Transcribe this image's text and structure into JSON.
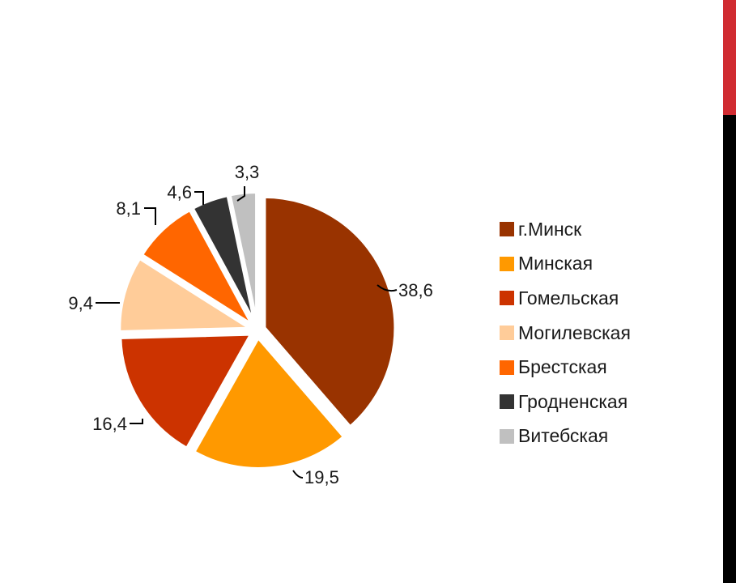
{
  "chart_data": {
    "type": "pie",
    "title": "",
    "legend_position": "right",
    "slices": [
      {
        "name": "г.Минск",
        "value": 38.6,
        "label": "38,6",
        "color": "#993300"
      },
      {
        "name": "Минская",
        "value": 19.5,
        "label": "19,5",
        "color": "#ff9900"
      },
      {
        "name": "Гомельская",
        "value": 16.4,
        "label": "16,4",
        "color": "#cc3300"
      },
      {
        "name": "Могилевская",
        "value": 9.4,
        "label": "9,4",
        "color": "#ffcc99"
      },
      {
        "name": "Брестская",
        "value": 8.1,
        "label": "8,1",
        "color": "#ff6600"
      },
      {
        "name": "Гродненская",
        "value": 4.6,
        "label": "4,6",
        "color": "#333333"
      },
      {
        "name": "Витебская",
        "value": 3.3,
        "label": "3,3",
        "color": "#c0c0c0"
      }
    ]
  },
  "slide": {
    "accent_top": "#d02b31",
    "accent_bottom": "#000000"
  }
}
